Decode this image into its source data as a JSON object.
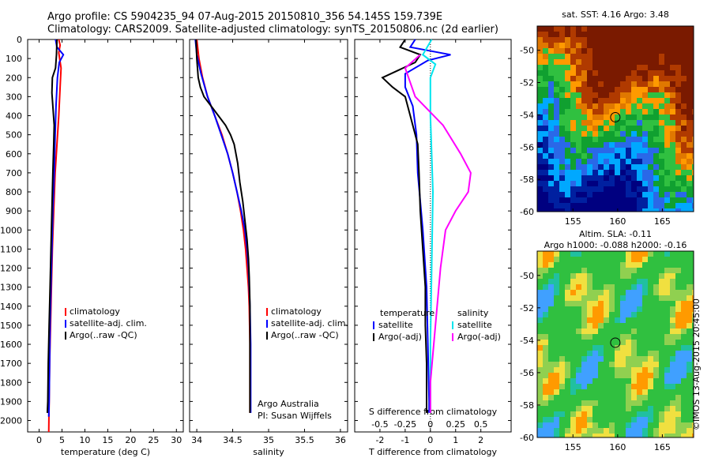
{
  "header": {
    "line1": "Argo profile: CS 5904235_94 07-Aug-2015 20150810_356 54.145S 159.739E",
    "line2": "Climatology: CARS2009. Satellite-adjusted climatology: synTS_20150806.nc (2d earlier)"
  },
  "colors": {
    "climatology": "#ff0000",
    "satellite": "#0000ff",
    "argo": "#000000",
    "sat_salinity": "#00e5ee",
    "argo_salinity": "#ff00ff"
  },
  "depth_axis": {
    "ticks": [
      0,
      100,
      200,
      300,
      400,
      500,
      600,
      700,
      800,
      900,
      1000,
      1100,
      1200,
      1300,
      1400,
      1500,
      1600,
      1700,
      1800,
      1900,
      2000
    ],
    "range": [
      0,
      2060
    ]
  },
  "chart_data": [
    {
      "type": "line",
      "id": "temperature",
      "xlabel": "temperature (deg C)",
      "xlim": [
        -2.5,
        31.5
      ],
      "xticks": [
        0,
        5,
        10,
        15,
        20,
        25,
        30
      ],
      "legend": [
        "climatology",
        "satellite-adj. clim.",
        "Argo(..raw -QC)"
      ],
      "series": [
        {
          "name": "climatology",
          "color": "#ff0000",
          "points": [
            [
              4.3,
              0
            ],
            [
              4.6,
              30
            ],
            [
              4.3,
              70
            ],
            [
              4.8,
              150
            ],
            [
              4.6,
              250
            ],
            [
              4.3,
              400
            ],
            [
              3.9,
              550
            ],
            [
              3.5,
              700
            ],
            [
              3.2,
              900
            ],
            [
              2.9,
              1100
            ],
            [
              2.7,
              1300
            ],
            [
              2.5,
              1500
            ],
            [
              2.3,
              1700
            ],
            [
              2.2,
              1900
            ],
            [
              2.1,
              2060
            ]
          ]
        },
        {
          "name": "satellite-adj. clim.",
          "color": "#0000ff",
          "points": [
            [
              3.6,
              0
            ],
            [
              3.9,
              40
            ],
            [
              5.3,
              80
            ],
            [
              4.4,
              120
            ],
            [
              4.0,
              200
            ],
            [
              3.7,
              350
            ],
            [
              3.5,
              500
            ],
            [
              3.3,
              700
            ],
            [
              3.0,
              900
            ],
            [
              2.8,
              1100
            ],
            [
              2.6,
              1300
            ],
            [
              2.4,
              1500
            ],
            [
              2.3,
              1700
            ],
            [
              2.2,
              1900
            ],
            [
              2.1,
              1980
            ]
          ]
        },
        {
          "name": "Argo(..raw -QC)",
          "color": "#000000",
          "points": [
            [
              3.9,
              0
            ],
            [
              3.8,
              80
            ],
            [
              3.6,
              150
            ],
            [
              2.9,
              200
            ],
            [
              2.8,
              280
            ],
            [
              3.0,
              350
            ],
            [
              3.3,
              450
            ],
            [
              3.2,
              550
            ],
            [
              3.0,
              700
            ],
            [
              2.8,
              900
            ],
            [
              2.6,
              1100
            ],
            [
              2.4,
              1300
            ],
            [
              2.2,
              1500
            ],
            [
              2.0,
              1700
            ],
            [
              1.9,
              1900
            ],
            [
              1.8,
              1960
            ]
          ]
        }
      ]
    },
    {
      "type": "line",
      "id": "salinity",
      "xlabel": "salinity",
      "xlim": [
        33.9,
        36.1
      ],
      "xticks": [
        34,
        34.5,
        35,
        35.5,
        36
      ],
      "legend": [
        "climatology",
        "satellite-adj. clim.",
        "Argo(..raw -QC)"
      ],
      "annotations": [
        "Argo Australia",
        "PI: Susan Wijffels"
      ],
      "series": [
        {
          "name": "climatology",
          "color": "#ff0000",
          "points": [
            [
              34.0,
              0
            ],
            [
              34.03,
              100
            ],
            [
              34.08,
              200
            ],
            [
              34.15,
              300
            ],
            [
              34.25,
              400
            ],
            [
              34.35,
              500
            ],
            [
              34.43,
              600
            ],
            [
              34.5,
              700
            ],
            [
              34.56,
              800
            ],
            [
              34.61,
              900
            ],
            [
              34.65,
              1000
            ],
            [
              34.68,
              1100
            ],
            [
              34.7,
              1200
            ],
            [
              34.72,
              1300
            ],
            [
              34.73,
              1400
            ],
            [
              34.74,
              1600
            ],
            [
              34.74,
              1800
            ],
            [
              34.74,
              1960
            ]
          ]
        },
        {
          "name": "satellite-adj. clim.",
          "color": "#0000ff",
          "points": [
            [
              33.98,
              0
            ],
            [
              34.0,
              80
            ],
            [
              34.06,
              180
            ],
            [
              34.15,
              300
            ],
            [
              34.25,
              400
            ],
            [
              34.34,
              500
            ],
            [
              34.43,
              600
            ],
            [
              34.5,
              700
            ],
            [
              34.56,
              800
            ],
            [
              34.62,
              900
            ],
            [
              34.67,
              1000
            ],
            [
              34.7,
              1100
            ],
            [
              34.72,
              1200
            ],
            [
              34.73,
              1300
            ],
            [
              34.74,
              1400
            ],
            [
              34.75,
              1600
            ],
            [
              34.75,
              1800
            ],
            [
              34.75,
              1960
            ]
          ]
        },
        {
          "name": "Argo(..raw -QC)",
          "color": "#000000",
          "points": [
            [
              33.99,
              0
            ],
            [
              34.0,
              100
            ],
            [
              34.02,
              200
            ],
            [
              34.05,
              250
            ],
            [
              34.1,
              300
            ],
            [
              34.2,
              350
            ],
            [
              34.3,
              400
            ],
            [
              34.4,
              450
            ],
            [
              34.47,
              500
            ],
            [
              34.52,
              550
            ],
            [
              34.57,
              650
            ],
            [
              34.6,
              750
            ],
            [
              34.64,
              850
            ],
            [
              34.67,
              950
            ],
            [
              34.7,
              1050
            ],
            [
              34.72,
              1150
            ],
            [
              34.73,
              1250
            ],
            [
              34.74,
              1400
            ],
            [
              34.74,
              1600
            ],
            [
              34.74,
              1800
            ],
            [
              34.74,
              1960
            ]
          ]
        }
      ]
    },
    {
      "type": "line",
      "id": "differences",
      "xlabel": "T difference from climatology",
      "xlabel2": "S difference from climatology",
      "xlim": [
        -3.0,
        3.2
      ],
      "xticks": [
        -2,
        -1,
        0,
        1,
        2
      ],
      "xticks2": [
        -0.5,
        -0.25,
        0,
        0.25,
        0.5
      ],
      "legend_temperature": "temperature",
      "legend_salinity": "salinity",
      "legend_entries": [
        "satellite",
        "Argo(-adj)",
        "satellite",
        "Argo(-adj)"
      ],
      "series": [
        {
          "name": "satellite",
          "color": "#0000ff",
          "points": [
            [
              -0.6,
              0
            ],
            [
              -0.8,
              40
            ],
            [
              0.8,
              80
            ],
            [
              -0.1,
              110
            ],
            [
              -1.0,
              180
            ],
            [
              -1.0,
              250
            ],
            [
              -0.7,
              350
            ],
            [
              -0.55,
              500
            ],
            [
              -0.5,
              700
            ],
            [
              -0.3,
              1000
            ],
            [
              -0.15,
              1300
            ],
            [
              -0.1,
              1600
            ],
            [
              -0.05,
              1900
            ],
            [
              -0.05,
              1960
            ]
          ]
        },
        {
          "name": "Argo(-adj)",
          "color": "#000000",
          "points": [
            [
              -1.0,
              0
            ],
            [
              -1.2,
              40
            ],
            [
              -0.4,
              80
            ],
            [
              -0.6,
              120
            ],
            [
              -1.9,
              200
            ],
            [
              -1.5,
              250
            ],
            [
              -1.0,
              300
            ],
            [
              -0.8,
              400
            ],
            [
              -0.5,
              550
            ],
            [
              -0.45,
              700
            ],
            [
              -0.4,
              900
            ],
            [
              -0.3,
              1100
            ],
            [
              -0.2,
              1300
            ],
            [
              -0.2,
              1500
            ],
            [
              -0.15,
              1700
            ],
            [
              -0.15,
              1900
            ],
            [
              -0.15,
              1960
            ]
          ]
        },
        {
          "name": "satellite",
          "color": "#00e5ee",
          "points": [
            [
              0.05,
              0
            ],
            [
              -0.3,
              80
            ],
            [
              0.2,
              130
            ],
            [
              0.0,
              200
            ],
            [
              0.0,
              400
            ],
            [
              0.1,
              800
            ],
            [
              0.05,
              1200
            ],
            [
              0.0,
              1600
            ],
            [
              0.0,
              1960
            ]
          ]
        },
        {
          "name": "Argo(-adj)",
          "color": "#ff00ff",
          "points": [
            [
              -0.4,
              80
            ],
            [
              -1.0,
              150
            ],
            [
              -0.6,
              300
            ],
            [
              0.5,
              450
            ],
            [
              1.2,
              600
            ],
            [
              1.6,
              700
            ],
            [
              1.5,
              800
            ],
            [
              1.0,
              900
            ],
            [
              0.6,
              1000
            ],
            [
              0.4,
              1200
            ],
            [
              0.2,
              1500
            ],
            [
              0.0,
              1800
            ],
            [
              0.0,
              1960
            ]
          ]
        }
      ]
    },
    {
      "type": "heatmap",
      "id": "sst-map",
      "title": "sat. SST: 4.16 Argo: 3.48",
      "xlim": [
        151,
        168.5
      ],
      "ylim": [
        -60,
        -48.5
      ],
      "xticks": [
        155,
        160,
        165
      ],
      "yticks": [
        -50,
        -52,
        -54,
        -56,
        -58,
        -60
      ],
      "argo_position": [
        159.74,
        -54.15
      ],
      "colors": [
        "#7a1a00",
        "#b03a00",
        "#e07800",
        "#ff9a00",
        "#30c040",
        "#10a030",
        "#2a68e8",
        "#00a8ff",
        "#0020a0",
        "#000080"
      ]
    },
    {
      "type": "heatmap",
      "id": "sla-map",
      "title": "Altim. SLA: -0.11",
      "subtitle": "Argo h1000: -0.088 h2000: -0.16",
      "xlim": [
        151,
        168.5
      ],
      "ylim": [
        -60,
        -48.5
      ],
      "xticks": [
        155,
        160,
        165
      ],
      "yticks": [
        -50,
        -52,
        -54,
        -56,
        -58,
        -60
      ],
      "argo_position": [
        159.74,
        -54.15
      ],
      "colors": [
        "#30c040",
        "#90d050",
        "#f0e040",
        "#ff9a00",
        "#40a0ff",
        "#20c0a0"
      ]
    }
  ],
  "credit": "©IMOS 13-Aug-2015 20:45:00"
}
